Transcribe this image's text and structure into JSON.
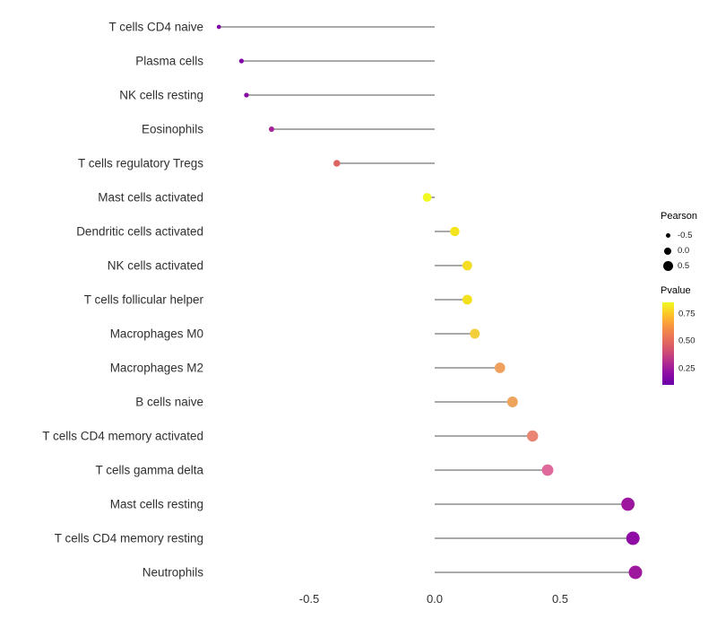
{
  "chart_data": {
    "type": "lollipop",
    "title": "",
    "xlabel": "",
    "ylabel": "",
    "size_by": "Pearson",
    "color_by": "Pvalue",
    "xlim": [
      -1.0,
      1.0
    ],
    "x_ticks": [
      -0.5,
      0.0,
      0.5
    ],
    "x_tick_labels": [
      "-0.5",
      "0.0",
      "0.5"
    ],
    "categories": [
      "T cells CD4 naive",
      "Plasma cells",
      "NK cells resting",
      "Eosinophils",
      "T cells regulatory  Tregs",
      "Mast cells activated",
      "Dendritic cells activated",
      "NK cells activated",
      "T cells follicular helper",
      "Macrophages M0",
      "Macrophages M2",
      "B cells naive",
      "T cells CD4 memory activated",
      "T cells gamma delta",
      "Mast cells resting",
      "T cells CD4 memory resting",
      "Neutrophils"
    ],
    "values": [
      -0.86,
      -0.77,
      -0.75,
      -0.65,
      -0.39,
      -0.03,
      0.08,
      0.13,
      0.13,
      0.16,
      0.26,
      0.31,
      0.39,
      0.45,
      0.77,
      0.79,
      0.8
    ],
    "point_colors": [
      "#7e03a8",
      "#8104a7",
      "#8606a6",
      "#a62098",
      "#de6562",
      "#f0f921",
      "#f3e51d",
      "#f4de25",
      "#f3e11e",
      "#f2cf3b",
      "#f0a05c",
      "#efa45e",
      "#e98572",
      "#e0699b",
      "#9c179e",
      "#8f0da4",
      "#9e189d"
    ],
    "segment_color": "#1a1a1a",
    "text_color": "#303030",
    "grid": "off",
    "legend_position": "right"
  },
  "legend": {
    "pearson": {
      "title": "Pearson",
      "dot_color": "#000000",
      "items": [
        {
          "label": "-0.5"
        },
        {
          "label": "0.0"
        },
        {
          "label": "0.5"
        }
      ]
    },
    "pvalue": {
      "title": "Pvalue",
      "ticks": [
        "0.75",
        "0.50",
        "0.25"
      ],
      "gradient": [
        "#f0f921",
        "#fdc527",
        "#f89540",
        "#e97257",
        "#d5536f",
        "#b52f8c",
        "#8f0da4",
        "#6a00a8"
      ]
    }
  }
}
